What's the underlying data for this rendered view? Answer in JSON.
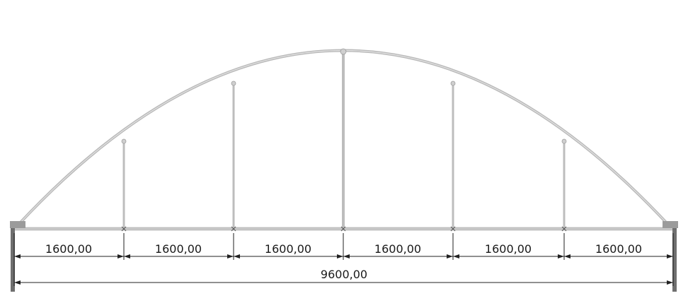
{
  "drawing": {
    "segment_dimensions": [
      "1600,00",
      "1600,00",
      "1600,00",
      "1600,00",
      "1600,00",
      "1600,00"
    ],
    "total_dimension": "9600,00",
    "colors": {
      "truss": "#c4c4c4",
      "truss_edge": "#9a9a9a",
      "support": "#7a7a7a",
      "dimension_line": "#1a1a1a"
    }
  }
}
